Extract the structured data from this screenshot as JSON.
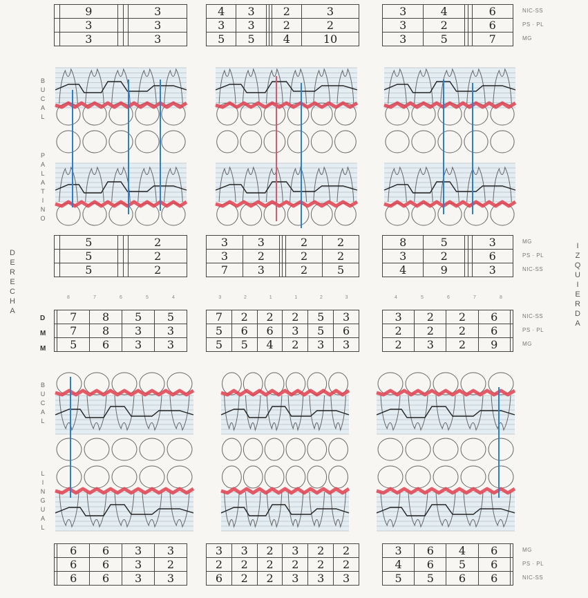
{
  "side_labels": {
    "right": "DERECHA",
    "left": "IZQUIERDA"
  },
  "diagram_labels": {
    "upper_buccal": "BUCAL",
    "upper_palatal": "PALATINO",
    "lower_buccal": "BUCAL",
    "lower_lingual": "LINGUAL"
  },
  "legends": {
    "top": [
      "NIC-SS",
      "PS · PL",
      "MG"
    ],
    "upper_mid": [
      "MG",
      "PS · PL",
      "NIC-SS"
    ],
    "lower_mid": [
      "NIC-SS",
      "PS · PL",
      "MG"
    ],
    "bottom": [
      "MG",
      "PS · PL",
      "NIC-SS"
    ]
  },
  "row_letters": [
    "D",
    "M",
    "M"
  ],
  "tooth_numbers": {
    "left_block": [
      "8",
      "7",
      "6",
      "5",
      "4"
    ],
    "middle_block": [
      "3",
      "2",
      "1",
      "1",
      "2",
      "3"
    ],
    "right_block": [
      "4",
      "5",
      "6",
      "7",
      "8"
    ]
  },
  "tables": {
    "top": [
      [
        [
          "",
          "9",
          "",
          "",
          "3"
        ],
        [
          "",
          "3",
          "",
          "",
          "3"
        ],
        [
          "",
          "3",
          "",
          "",
          "3"
        ]
      ],
      [
        [
          "4",
          "3",
          "",
          "",
          "2",
          "3"
        ],
        [
          "3",
          "3",
          "",
          "",
          "2",
          "2"
        ],
        [
          "5",
          "5",
          "",
          "",
          "4",
          "10"
        ]
      ],
      [
        [
          "3",
          "4",
          "",
          "",
          "6"
        ],
        [
          "3",
          "2",
          "",
          "",
          "6"
        ],
        [
          "3",
          "5",
          "",
          "",
          "7"
        ]
      ]
    ],
    "upper_mid": [
      [
        [
          "",
          "5",
          "",
          "",
          "2"
        ],
        [
          "",
          "5",
          "",
          "",
          "2"
        ],
        [
          "",
          "5",
          "",
          "",
          "2"
        ]
      ],
      [
        [
          "3",
          "3",
          "",
          "",
          "2",
          "2"
        ],
        [
          "3",
          "2",
          "",
          "",
          "2",
          "2"
        ],
        [
          "7",
          "3",
          "",
          "",
          "2",
          "5"
        ]
      ],
      [
        [
          "8",
          "5",
          "",
          "",
          "3"
        ],
        [
          "3",
          "2",
          "",
          "",
          "6"
        ],
        [
          "4",
          "9",
          "",
          "",
          "3"
        ]
      ]
    ],
    "lower_mid": [
      [
        [
          "",
          "7",
          "8",
          "5",
          "5"
        ],
        [
          "",
          "7",
          "8",
          "3",
          "3"
        ],
        [
          "",
          "5",
          "6",
          "3",
          "3"
        ]
      ],
      [
        [
          "7",
          "2",
          "2",
          "2",
          "5",
          "3"
        ],
        [
          "5",
          "6",
          "6",
          "3",
          "5",
          "6"
        ],
        [
          "5",
          "5",
          "4",
          "2",
          "3",
          "3"
        ]
      ],
      [
        [
          "3",
          "2",
          "2",
          "6",
          ""
        ],
        [
          "2",
          "2",
          "2",
          "6",
          ""
        ],
        [
          "2",
          "3",
          "2",
          "9",
          ""
        ]
      ]
    ],
    "bottom": [
      [
        [
          "",
          "6",
          "6",
          "3",
          "3"
        ],
        [
          "",
          "6",
          "6",
          "3",
          "2"
        ],
        [
          "",
          "6",
          "6",
          "3",
          "3"
        ]
      ],
      [
        [
          "3",
          "3",
          "2",
          "3",
          "2",
          "2"
        ],
        [
          "2",
          "2",
          "2",
          "2",
          "2",
          "2"
        ],
        [
          "6",
          "2",
          "2",
          "3",
          "3",
          "3"
        ]
      ],
      [
        [
          "3",
          "6",
          "4",
          "6",
          ""
        ],
        [
          "4",
          "6",
          "5",
          "6",
          ""
        ],
        [
          "5",
          "5",
          "6",
          "6",
          ""
        ]
      ]
    ]
  },
  "colors": {
    "gingival_margin": "#e0404f",
    "probing_line": "#222222",
    "implant_line": "#2a7fd0",
    "grid_band": "#d4e6f2",
    "grid_line": "#9fa9b3",
    "tooth_outline": "#666666"
  }
}
